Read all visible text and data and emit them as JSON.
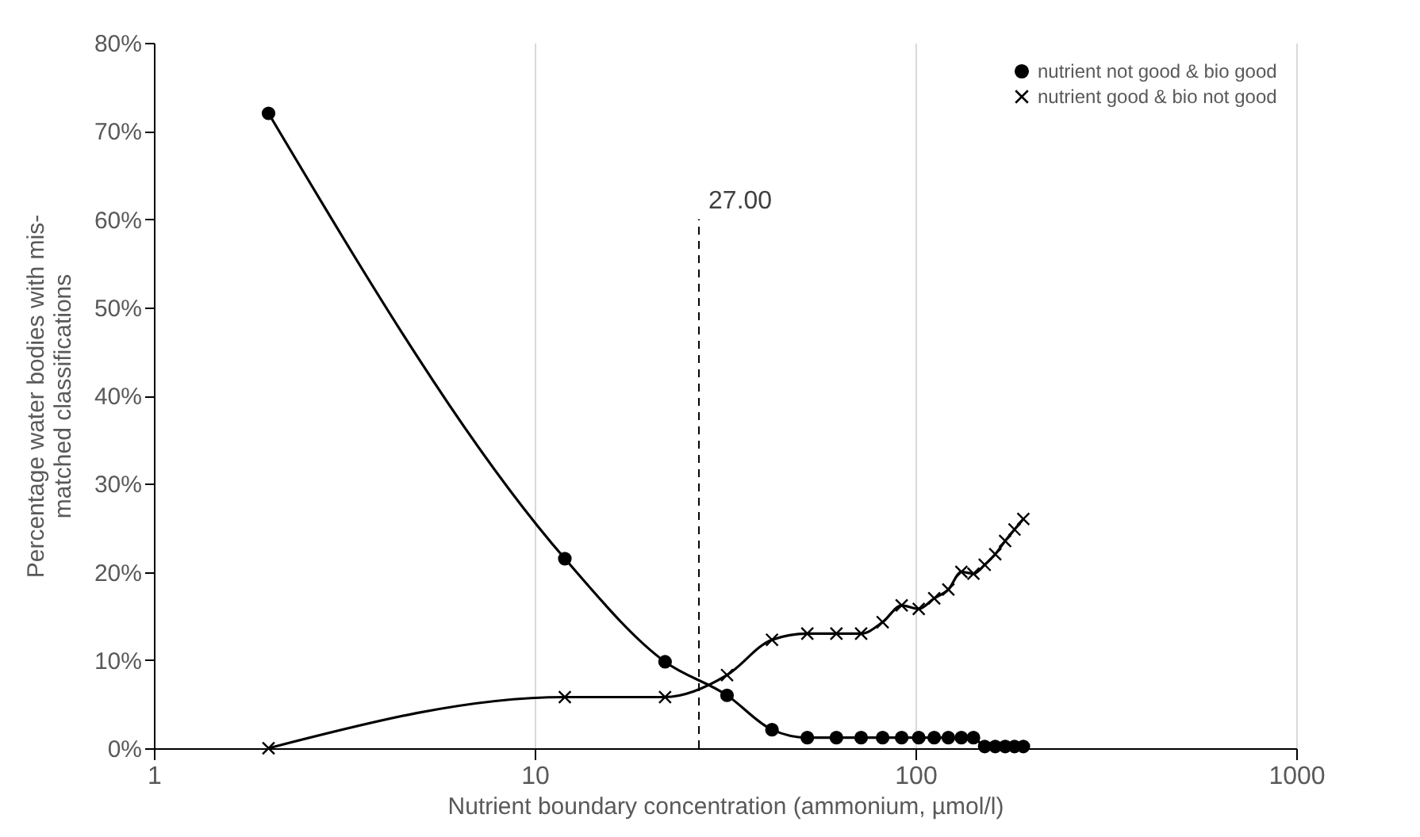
{
  "chart_data": {
    "type": "line",
    "xlabel": "Nutrient boundary concentration (ammonium, µmol/l)",
    "ylabel": "Percentage water bodies with mis-matched classifications",
    "log": "x",
    "x": [
      2,
      12,
      22,
      32,
      42,
      52,
      62,
      72,
      82,
      92,
      102,
      112,
      122,
      132,
      142,
      152,
      162,
      172,
      182,
      192
    ],
    "series": [
      {
        "name": "nutrient not good & bio good",
        "color": "#000000",
        "marker": "circle",
        "values": [
          72,
          21.5,
          9.8,
          6,
          2.1,
          1.2,
          1.2,
          1.2,
          1.2,
          1.2,
          1.2,
          1.2,
          1.2,
          1.2,
          1.2,
          0.2,
          0.2,
          0.2,
          0.2,
          0.2
        ]
      },
      {
        "name": "nutrient good & bio not good",
        "color": "#000000",
        "marker": "cross",
        "values": [
          0,
          5.8,
          5.8,
          8.3,
          12.3,
          13,
          13,
          13,
          14.3,
          16.2,
          15.8,
          17,
          18,
          20,
          19.8,
          20.8,
          22,
          23.5,
          24.8,
          26
        ]
      }
    ],
    "xlim": [
      1,
      1000
    ],
    "xticks": [
      1,
      10,
      100,
      1000
    ],
    "ylim": [
      0,
      80
    ],
    "yticks": [
      {
        "value": 0,
        "label": "0%"
      },
      {
        "value": 10,
        "label": "10%"
      },
      {
        "value": 20,
        "label": "20%"
      },
      {
        "value": 30,
        "label": "30%"
      },
      {
        "value": 40,
        "label": "40%"
      },
      {
        "value": 50,
        "label": "50%"
      },
      {
        "value": 60,
        "label": "60%"
      },
      {
        "value": 70,
        "label": "70%"
      },
      {
        "value": 80,
        "label": "80%"
      }
    ],
    "ref_lines": [
      {
        "axis": "x",
        "value": 27,
        "label": "27.00",
        "color": "#000000",
        "line_style": "dashed"
      }
    ],
    "grid": "x",
    "legend": "top right",
    "line_style": "solid"
  }
}
